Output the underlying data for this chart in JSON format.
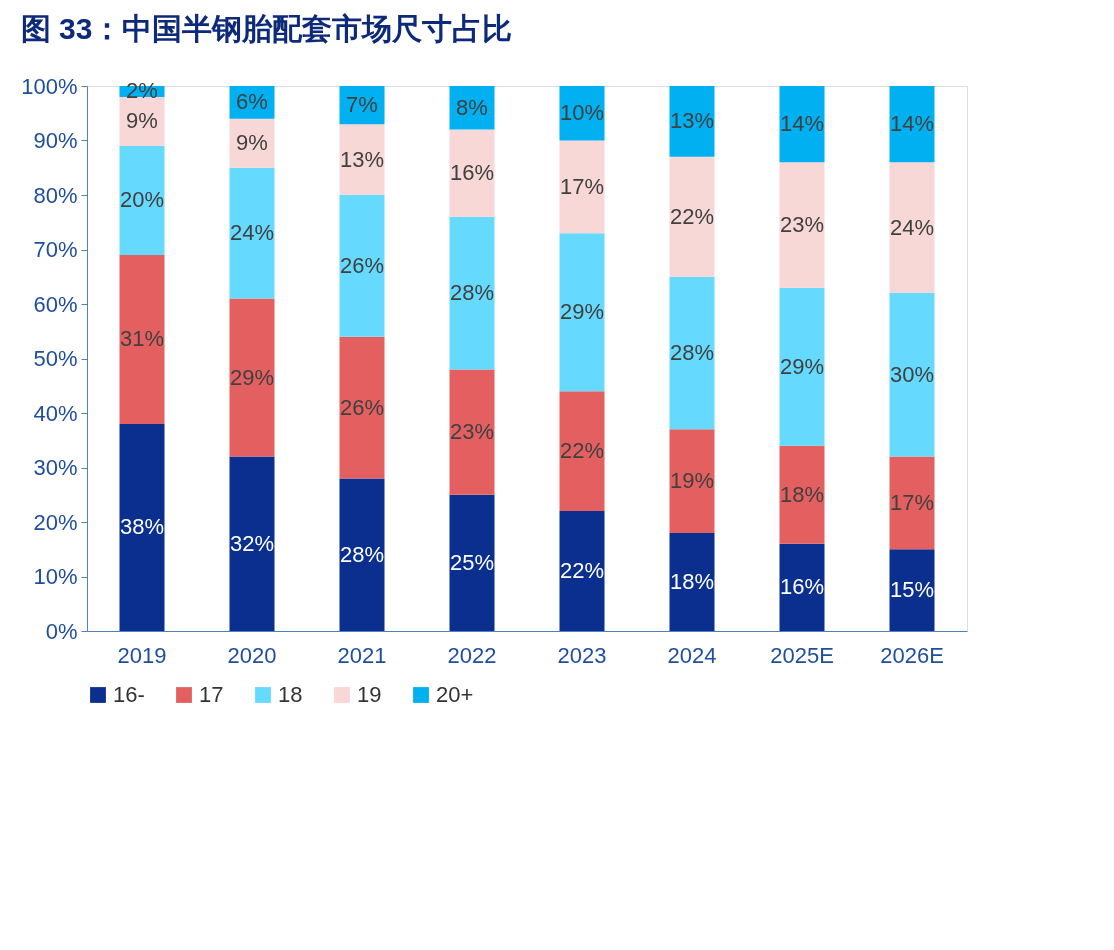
{
  "chart_data": {
    "type": "bar",
    "title": "图 33：中国半钢胎配套市场尺寸占比",
    "categories": [
      "2019",
      "2020",
      "2021",
      "2022",
      "2023",
      "2024",
      "2025E",
      "2026E"
    ],
    "stacked": true,
    "series": [
      {
        "name": "16-",
        "color": "#0a2f8f",
        "values": [
          38,
          32,
          28,
          25,
          22,
          18,
          16,
          15
        ],
        "value_labels": [
          "38%",
          "32%",
          "28%",
          "25%",
          "22%",
          "18%",
          "16%",
          "15%"
        ]
      },
      {
        "name": "17",
        "color": "#e46060",
        "values": [
          31,
          29,
          26,
          23,
          22,
          19,
          18,
          17
        ],
        "value_labels": [
          "31%",
          "29%",
          "26%",
          "23%",
          "22%",
          "19%",
          "18%",
          "17%"
        ]
      },
      {
        "name": "18",
        "color": "#66d9ff",
        "values": [
          20,
          24,
          26,
          28,
          29,
          28,
          29,
          30
        ],
        "value_labels": [
          "20%",
          "24%",
          "26%",
          "28%",
          "29%",
          "28%",
          "29%",
          "30%"
        ]
      },
      {
        "name": "19",
        "color": "#f8d7d7",
        "values": [
          9,
          9,
          13,
          16,
          17,
          22,
          23,
          24
        ],
        "value_labels": [
          "9%",
          "9%",
          "13%",
          "16%",
          "17%",
          "22%",
          "23%",
          "24%"
        ]
      },
      {
        "name": "20+",
        "color": "#00b0f0",
        "values": [
          2,
          6,
          7,
          8,
          10,
          13,
          14,
          14
        ],
        "value_labels": [
          "2%",
          "6%",
          "7%",
          "8%",
          "10%",
          "13%",
          "14%",
          "14%"
        ]
      }
    ],
    "ylim": [
      0,
      100
    ],
    "yticks": [
      {
        "value": 0,
        "label": "0%"
      },
      {
        "value": 10,
        "label": "10%"
      },
      {
        "value": 20,
        "label": "20%"
      },
      {
        "value": 30,
        "label": "30%"
      },
      {
        "value": 40,
        "label": "40%"
      },
      {
        "value": 50,
        "label": "50%"
      },
      {
        "value": 60,
        "label": "60%"
      },
      {
        "value": 70,
        "label": "70%"
      },
      {
        "value": 80,
        "label": "80%"
      },
      {
        "value": 90,
        "label": "90%"
      },
      {
        "value": 100,
        "label": "100%"
      }
    ],
    "grid": false,
    "legend": "bottom"
  }
}
